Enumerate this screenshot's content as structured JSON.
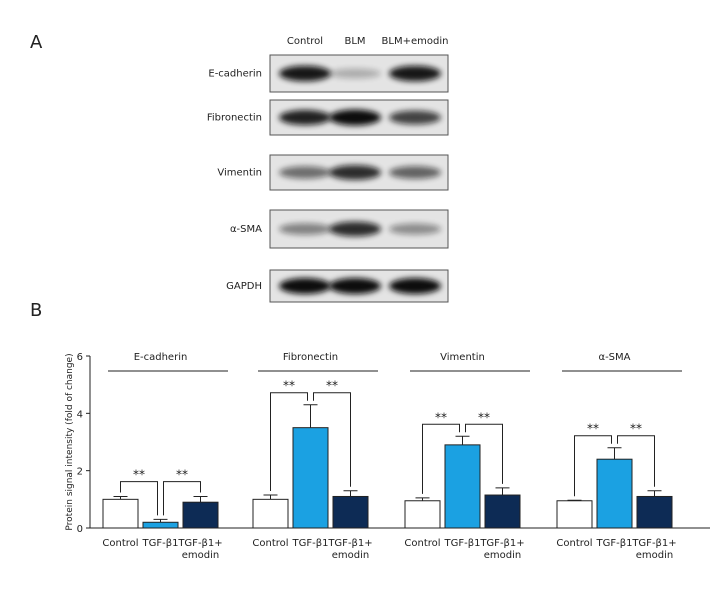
{
  "blot": {
    "panel_label": "A",
    "lanes": [
      "Control",
      "BLM",
      "BLM+emodin"
    ],
    "proteins": [
      "E-cadherin",
      "Fibronectin",
      "Vimentin",
      "α-SMA",
      "GAPDH"
    ]
  },
  "chart_data": {
    "type": "bar",
    "panel_label": "B",
    "y_label": "Protein signal intensity (fold of change)",
    "categories": [
      "E-cadherin",
      "Fibronectin",
      "Vimentin",
      "α-SMA"
    ],
    "series": [
      {
        "name": "Control",
        "color": "#ffffff",
        "values": [
          1.0,
          1.0,
          0.95,
          0.95
        ],
        "errors": [
          0.1,
          0.15,
          0.1,
          0.02
        ]
      },
      {
        "name": "TGF-β1",
        "color": "#1ba1e2",
        "values": [
          0.2,
          3.5,
          2.9,
          2.4
        ],
        "errors": [
          0.1,
          0.8,
          0.3,
          0.4
        ]
      },
      {
        "name": "TGF-β1+ emodin",
        "color": "#0d2b55",
        "values": [
          0.9,
          1.1,
          1.15,
          1.1
        ],
        "errors": [
          0.2,
          0.2,
          0.25,
          0.2
        ]
      }
    ],
    "annotations": [
      "**",
      "**",
      "**",
      "**",
      "**",
      "**",
      "**",
      "**"
    ],
    "ylim": [
      0,
      6
    ],
    "yticks": [
      0,
      2,
      4,
      6
    ]
  }
}
